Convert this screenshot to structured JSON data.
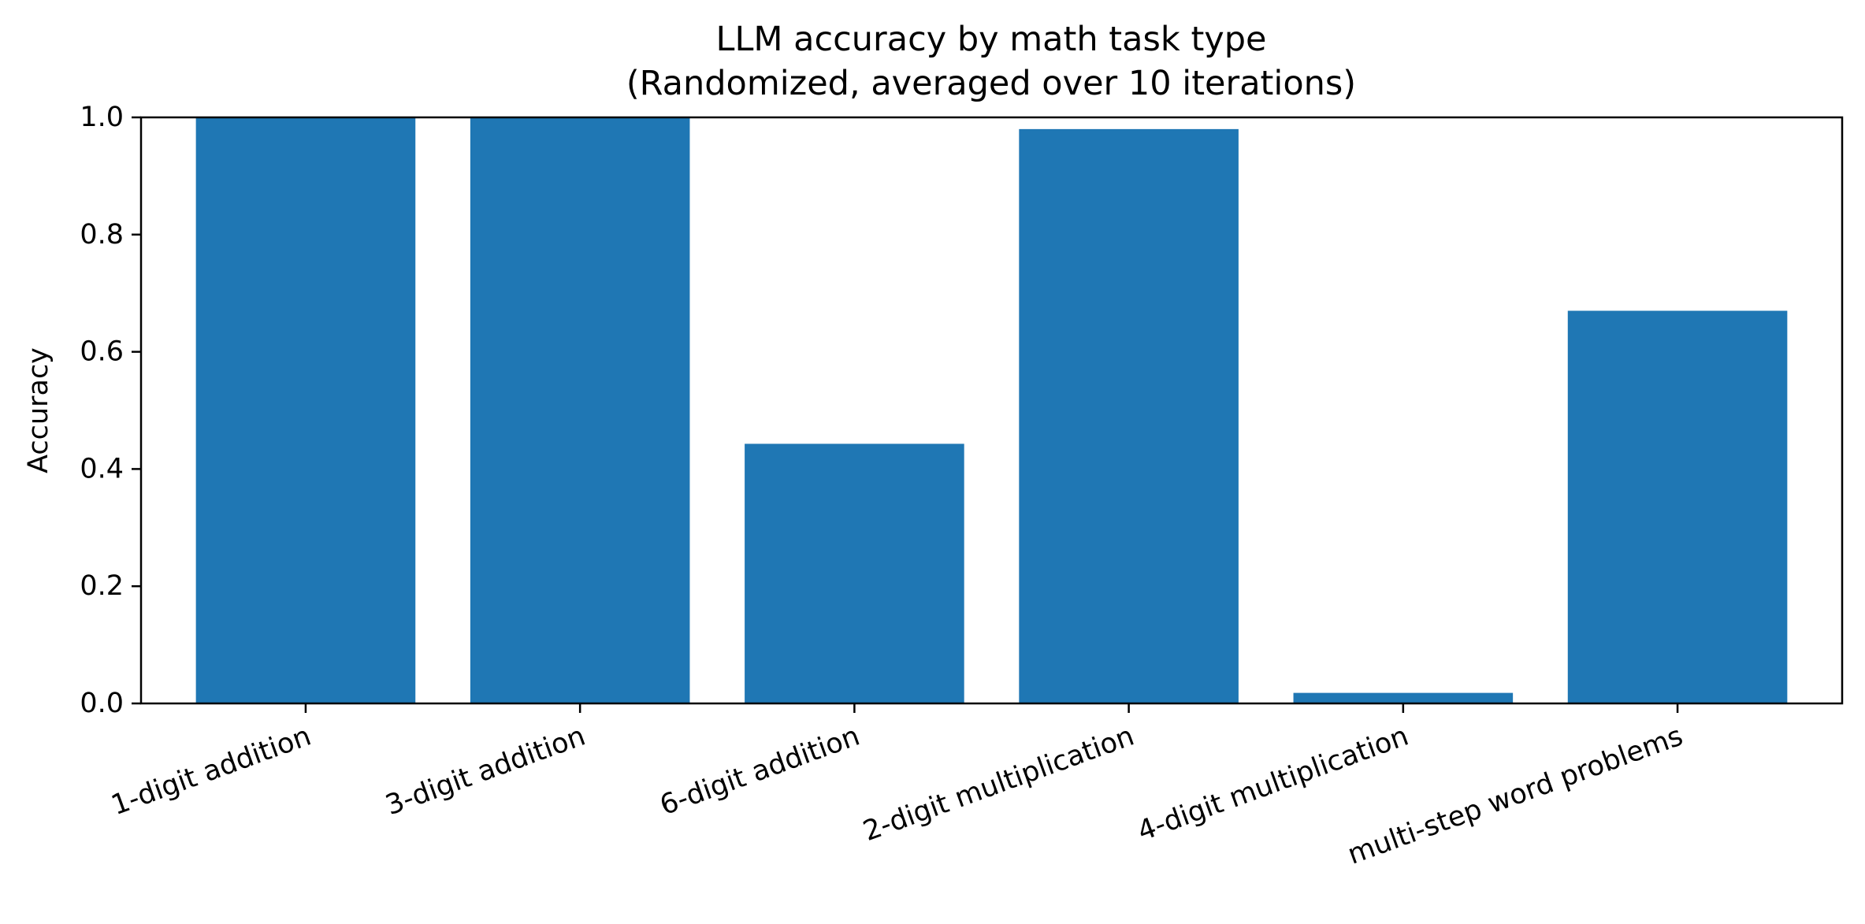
{
  "chart_data": {
    "type": "bar",
    "title": "LLM accuracy by math task type",
    "subtitle": "(Randomized, averaged over 10 iterations)",
    "xlabel": "",
    "ylabel": "Accuracy",
    "ylim": [
      0,
      1
    ],
    "yticks": [
      0.0,
      0.2,
      0.4,
      0.6,
      0.8,
      1.0
    ],
    "ytick_labels": [
      "0.0",
      "0.2",
      "0.4",
      "0.6",
      "0.8",
      "1.0"
    ],
    "categories": [
      "1-digit addition",
      "3-digit addition",
      "6-digit addition",
      "2-digit multiplication",
      "4-digit multiplication",
      "multi-step word problems"
    ],
    "values": [
      1.0,
      1.0,
      0.443,
      0.98,
      0.018,
      0.67
    ],
    "bar_color": "#1f77b4",
    "grid": false,
    "legend": "none"
  }
}
